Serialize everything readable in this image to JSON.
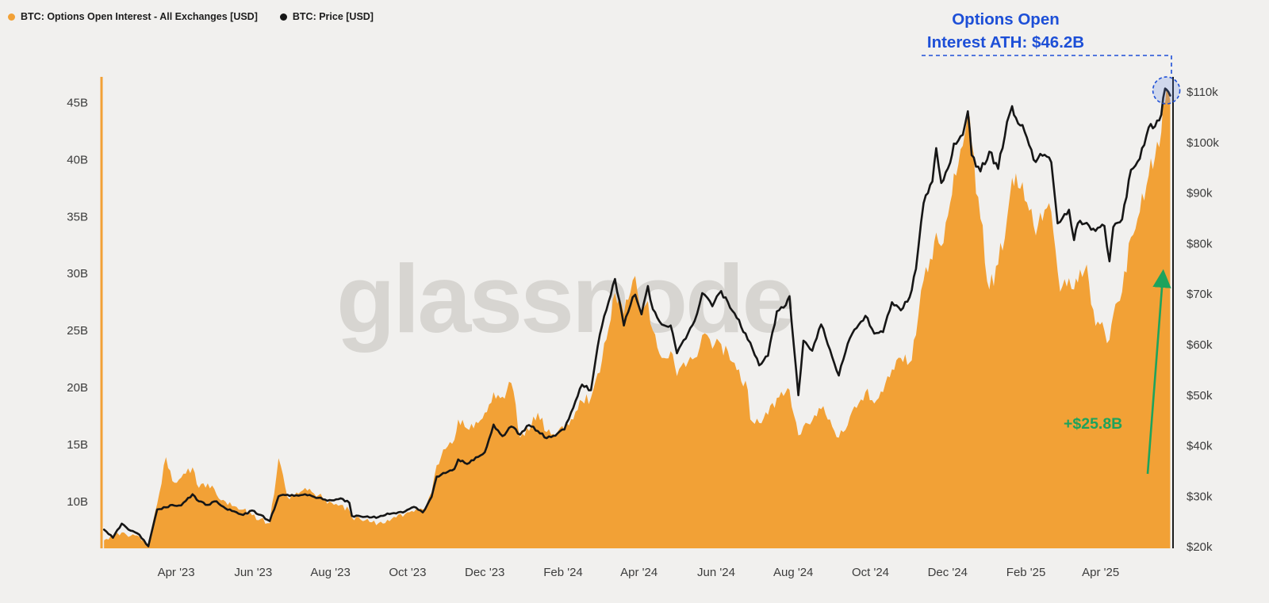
{
  "page": {
    "background": "#f1f0ee"
  },
  "legend": {
    "position": "top-left",
    "items": [
      {
        "label": "BTC: Options Open Interest - All Exchanges [USD]",
        "color": "#f2a136"
      },
      {
        "label": "BTC: Price [USD]",
        "color": "#161616"
      }
    ]
  },
  "watermark": {
    "text": "glassnode"
  },
  "annotations": {
    "ath_line1": "Options Open",
    "ath_line2": "Interest ATH: $46.2B",
    "ath_color": "#1d4fd7",
    "delta_label": "+$25.8B",
    "delta_color": "#1ea35c"
  },
  "chart_data": {
    "type": "mixed",
    "subtype": "area(left axis) + line(right axis)",
    "title": "",
    "grid": false,
    "legend_position": "top-left",
    "x_range": [
      "2023-02-01",
      "2025-05-27"
    ],
    "dates": [
      "2023-02-03",
      "2023-02-10",
      "2023-02-17",
      "2023-02-24",
      "2023-03-03",
      "2023-03-10",
      "2023-03-17",
      "2023-03-24",
      "2023-03-29",
      "2023-04-05",
      "2023-04-14",
      "2023-04-19",
      "2023-04-26",
      "2023-05-03",
      "2023-05-10",
      "2023-05-17",
      "2023-05-24",
      "2023-05-31",
      "2023-06-07",
      "2023-06-14",
      "2023-06-21",
      "2023-06-28",
      "2023-07-05",
      "2023-07-12",
      "2023-07-19",
      "2023-07-26",
      "2023-08-02",
      "2023-08-09",
      "2023-08-16",
      "2023-08-18",
      "2023-08-25",
      "2023-09-01",
      "2023-09-08",
      "2023-09-15",
      "2023-09-22",
      "2023-09-29",
      "2023-10-06",
      "2023-10-13",
      "2023-10-20",
      "2023-10-24",
      "2023-10-31",
      "2023-11-07",
      "2023-11-10",
      "2023-11-17",
      "2023-11-24",
      "2023-12-01",
      "2023-12-08",
      "2023-12-15",
      "2023-12-22",
      "2023-12-29",
      "2024-01-05",
      "2024-01-12",
      "2024-01-19",
      "2024-01-26",
      "2024-02-02",
      "2024-02-09",
      "2024-02-16",
      "2024-02-23",
      "2024-03-01",
      "2024-03-08",
      "2024-03-13",
      "2024-03-20",
      "2024-03-27",
      "2024-03-29",
      "2024-04-03",
      "2024-04-08",
      "2024-04-12",
      "2024-04-19",
      "2024-04-26",
      "2024-05-01",
      "2024-05-08",
      "2024-05-15",
      "2024-05-21",
      "2024-05-29",
      "2024-06-05",
      "2024-06-12",
      "2024-06-19",
      "2024-06-26",
      "2024-06-28",
      "2024-07-05",
      "2024-07-12",
      "2024-07-19",
      "2024-07-26",
      "2024-07-29",
      "2024-08-05",
      "2024-08-09",
      "2024-08-16",
      "2024-08-23",
      "2024-08-30",
      "2024-09-06",
      "2024-09-13",
      "2024-09-20",
      "2024-09-27",
      "2024-10-04",
      "2024-10-11",
      "2024-10-18",
      "2024-10-25",
      "2024-11-01",
      "2024-11-06",
      "2024-11-12",
      "2024-11-19",
      "2024-11-22",
      "2024-11-26",
      "2024-12-03",
      "2024-12-06",
      "2024-12-13",
      "2024-12-17",
      "2024-12-20",
      "2024-12-27",
      "2025-01-03",
      "2025-01-10",
      "2025-01-17",
      "2025-01-21",
      "2025-01-24",
      "2025-01-31",
      "2025-02-07",
      "2025-02-14",
      "2025-02-21",
      "2025-02-26",
      "2025-02-28",
      "2025-03-07",
      "2025-03-11",
      "2025-03-14",
      "2025-03-21",
      "2025-03-28",
      "2025-04-04",
      "2025-04-08",
      "2025-04-11",
      "2025-04-18",
      "2025-04-25",
      "2025-05-02",
      "2025-05-09",
      "2025-05-14",
      "2025-05-19",
      "2025-05-22",
      "2025-05-23",
      "2025-05-26"
    ],
    "series": [
      {
        "name": "BTC: Options Open Interest - All Exchanges [USD]",
        "type": "area",
        "axis": "left",
        "unit": "USD billions",
        "color": "#f2a136",
        "values": [
          6.6,
          6.9,
          7.3,
          7.0,
          6.9,
          6.3,
          9.8,
          13.9,
          11.8,
          12.1,
          13.0,
          11.2,
          11.6,
          10.6,
          10.0,
          9.6,
          9.3,
          8.8,
          8.5,
          8.1,
          13.8,
          10.4,
          10.8,
          11.2,
          10.7,
          10.3,
          9.9,
          9.7,
          9.2,
          8.6,
          8.4,
          8.2,
          8.1,
          8.4,
          8.6,
          8.9,
          9.1,
          9.3,
          10.8,
          13.2,
          14.6,
          15.4,
          17.2,
          16.4,
          17.0,
          17.8,
          19.6,
          19.2,
          20.4,
          15.6,
          16.2,
          17.8,
          16.1,
          15.7,
          16.3,
          17.2,
          18.8,
          19.1,
          21.3,
          25.2,
          28.3,
          26.4,
          29.4,
          29.8,
          26.2,
          27.6,
          25.0,
          22.6,
          23.2,
          21.0,
          21.8,
          22.6,
          24.6,
          23.4,
          23.8,
          22.4,
          21.6,
          19.8,
          17.2,
          16.9,
          17.6,
          19.1,
          19.6,
          19.8,
          15.8,
          16.6,
          17.1,
          18.1,
          17.2,
          15.6,
          16.7,
          18.2,
          19.6,
          18.6,
          19.6,
          21.6,
          22.6,
          22.2,
          24.6,
          29.4,
          31.2,
          33.6,
          32.4,
          36.2,
          38.8,
          41.2,
          43.9,
          41.5,
          34.8,
          28.6,
          30.8,
          34.8,
          38.4,
          38.8,
          36.4,
          34.2,
          34.6,
          35.4,
          30.2,
          28.4,
          29.6,
          28.6,
          29.2,
          30.8,
          25.4,
          25.0,
          24.2,
          26.4,
          28.4,
          33.2,
          35.4,
          38.6,
          40.2,
          42.4,
          45.0,
          46.2,
          45.2
        ]
      },
      {
        "name": "BTC: Price [USD]",
        "type": "line",
        "axis": "right",
        "unit": "USD thousands",
        "color": "#161616",
        "values": [
          23.4,
          21.8,
          24.6,
          23.2,
          22.4,
          20.1,
          27.4,
          27.8,
          28.3,
          28.2,
          30.4,
          29.0,
          28.3,
          29.0,
          27.6,
          27.0,
          26.3,
          27.2,
          26.3,
          25.1,
          30.0,
          30.3,
          30.2,
          30.4,
          29.9,
          29.4,
          29.2,
          29.6,
          28.7,
          26.1,
          26.0,
          25.8,
          25.9,
          26.6,
          26.6,
          27.0,
          27.9,
          26.8,
          29.9,
          33.9,
          34.6,
          35.4,
          37.3,
          36.4,
          37.7,
          38.7,
          44.2,
          41.9,
          43.8,
          42.2,
          44.1,
          42.9,
          41.5,
          42.0,
          43.2,
          47.5,
          52.1,
          51.0,
          62.0,
          68.5,
          73.0,
          63.8,
          69.4,
          69.9,
          66.0,
          71.6,
          67.0,
          64.0,
          63.8,
          58.3,
          61.2,
          64.7,
          70.2,
          67.6,
          70.6,
          67.3,
          64.9,
          61.0,
          60.4,
          55.9,
          57.8,
          66.6,
          67.8,
          69.6,
          50.0,
          60.8,
          58.8,
          64.0,
          59.0,
          53.9,
          60.2,
          63.3,
          65.7,
          62.2,
          62.5,
          68.4,
          66.8,
          69.4,
          75.0,
          88.0,
          92.3,
          98.9,
          92.0,
          96.0,
          99.8,
          101.5,
          106.2,
          97.5,
          94.3,
          98.2,
          94.8,
          104.1,
          107.2,
          104.9,
          102.1,
          96.6,
          97.4,
          96.1,
          84.0,
          84.3,
          86.7,
          80.7,
          84.0,
          84.1,
          82.5,
          83.5,
          76.5,
          83.3,
          84.8,
          94.6,
          96.8,
          103.0,
          103.2,
          105.5,
          110.7,
          110.5,
          109.3
        ]
      }
    ],
    "left_axis": {
      "range": [
        5.9,
        47.25
      ],
      "color": "#f2a136",
      "ticks": [
        {
          "v": 10,
          "label": "10B"
        },
        {
          "v": 15,
          "label": "15B"
        },
        {
          "v": 20,
          "label": "20B"
        },
        {
          "v": 25,
          "label": "25B"
        },
        {
          "v": 30,
          "label": "30B"
        },
        {
          "v": 35,
          "label": "35B"
        },
        {
          "v": 40,
          "label": "40B"
        },
        {
          "v": 45,
          "label": "45B"
        }
      ]
    },
    "right_axis": {
      "range": [
        19.7,
        113.0
      ],
      "color": "#1c1c1c",
      "ticks": [
        {
          "v": 20,
          "label": "$20k"
        },
        {
          "v": 30,
          "label": "$30k"
        },
        {
          "v": 40,
          "label": "$40k"
        },
        {
          "v": 50,
          "label": "$50k"
        },
        {
          "v": 60,
          "label": "$60k"
        },
        {
          "v": 70,
          "label": "$70k"
        },
        {
          "v": 80,
          "label": "$80k"
        },
        {
          "v": 90,
          "label": "$90k"
        },
        {
          "v": 100,
          "label": "$100k"
        },
        {
          "v": 110,
          "label": "$110k"
        }
      ]
    },
    "x_ticks": [
      {
        "date": "2023-04-01",
        "label": "Apr '23"
      },
      {
        "date": "2023-06-01",
        "label": "Jun '23"
      },
      {
        "date": "2023-08-01",
        "label": "Aug '23"
      },
      {
        "date": "2023-10-01",
        "label": "Oct '23"
      },
      {
        "date": "2023-12-01",
        "label": "Dec '23"
      },
      {
        "date": "2024-02-01",
        "label": "Feb '24"
      },
      {
        "date": "2024-04-01",
        "label": "Apr '24"
      },
      {
        "date": "2024-06-01",
        "label": "Jun '24"
      },
      {
        "date": "2024-08-01",
        "label": "Aug '24"
      },
      {
        "date": "2024-10-01",
        "label": "Oct '24"
      },
      {
        "date": "2024-12-01",
        "label": "Dec '24"
      },
      {
        "date": "2025-02-01",
        "label": "Feb '25"
      },
      {
        "date": "2025-04-01",
        "label": "Apr '25"
      }
    ],
    "ath": {
      "date": "2025-05-23",
      "value": 46.2,
      "label": "Options Open Interest ATH: $46.2B"
    },
    "delta": {
      "value": 25.8,
      "label": "+$25.8B"
    }
  }
}
